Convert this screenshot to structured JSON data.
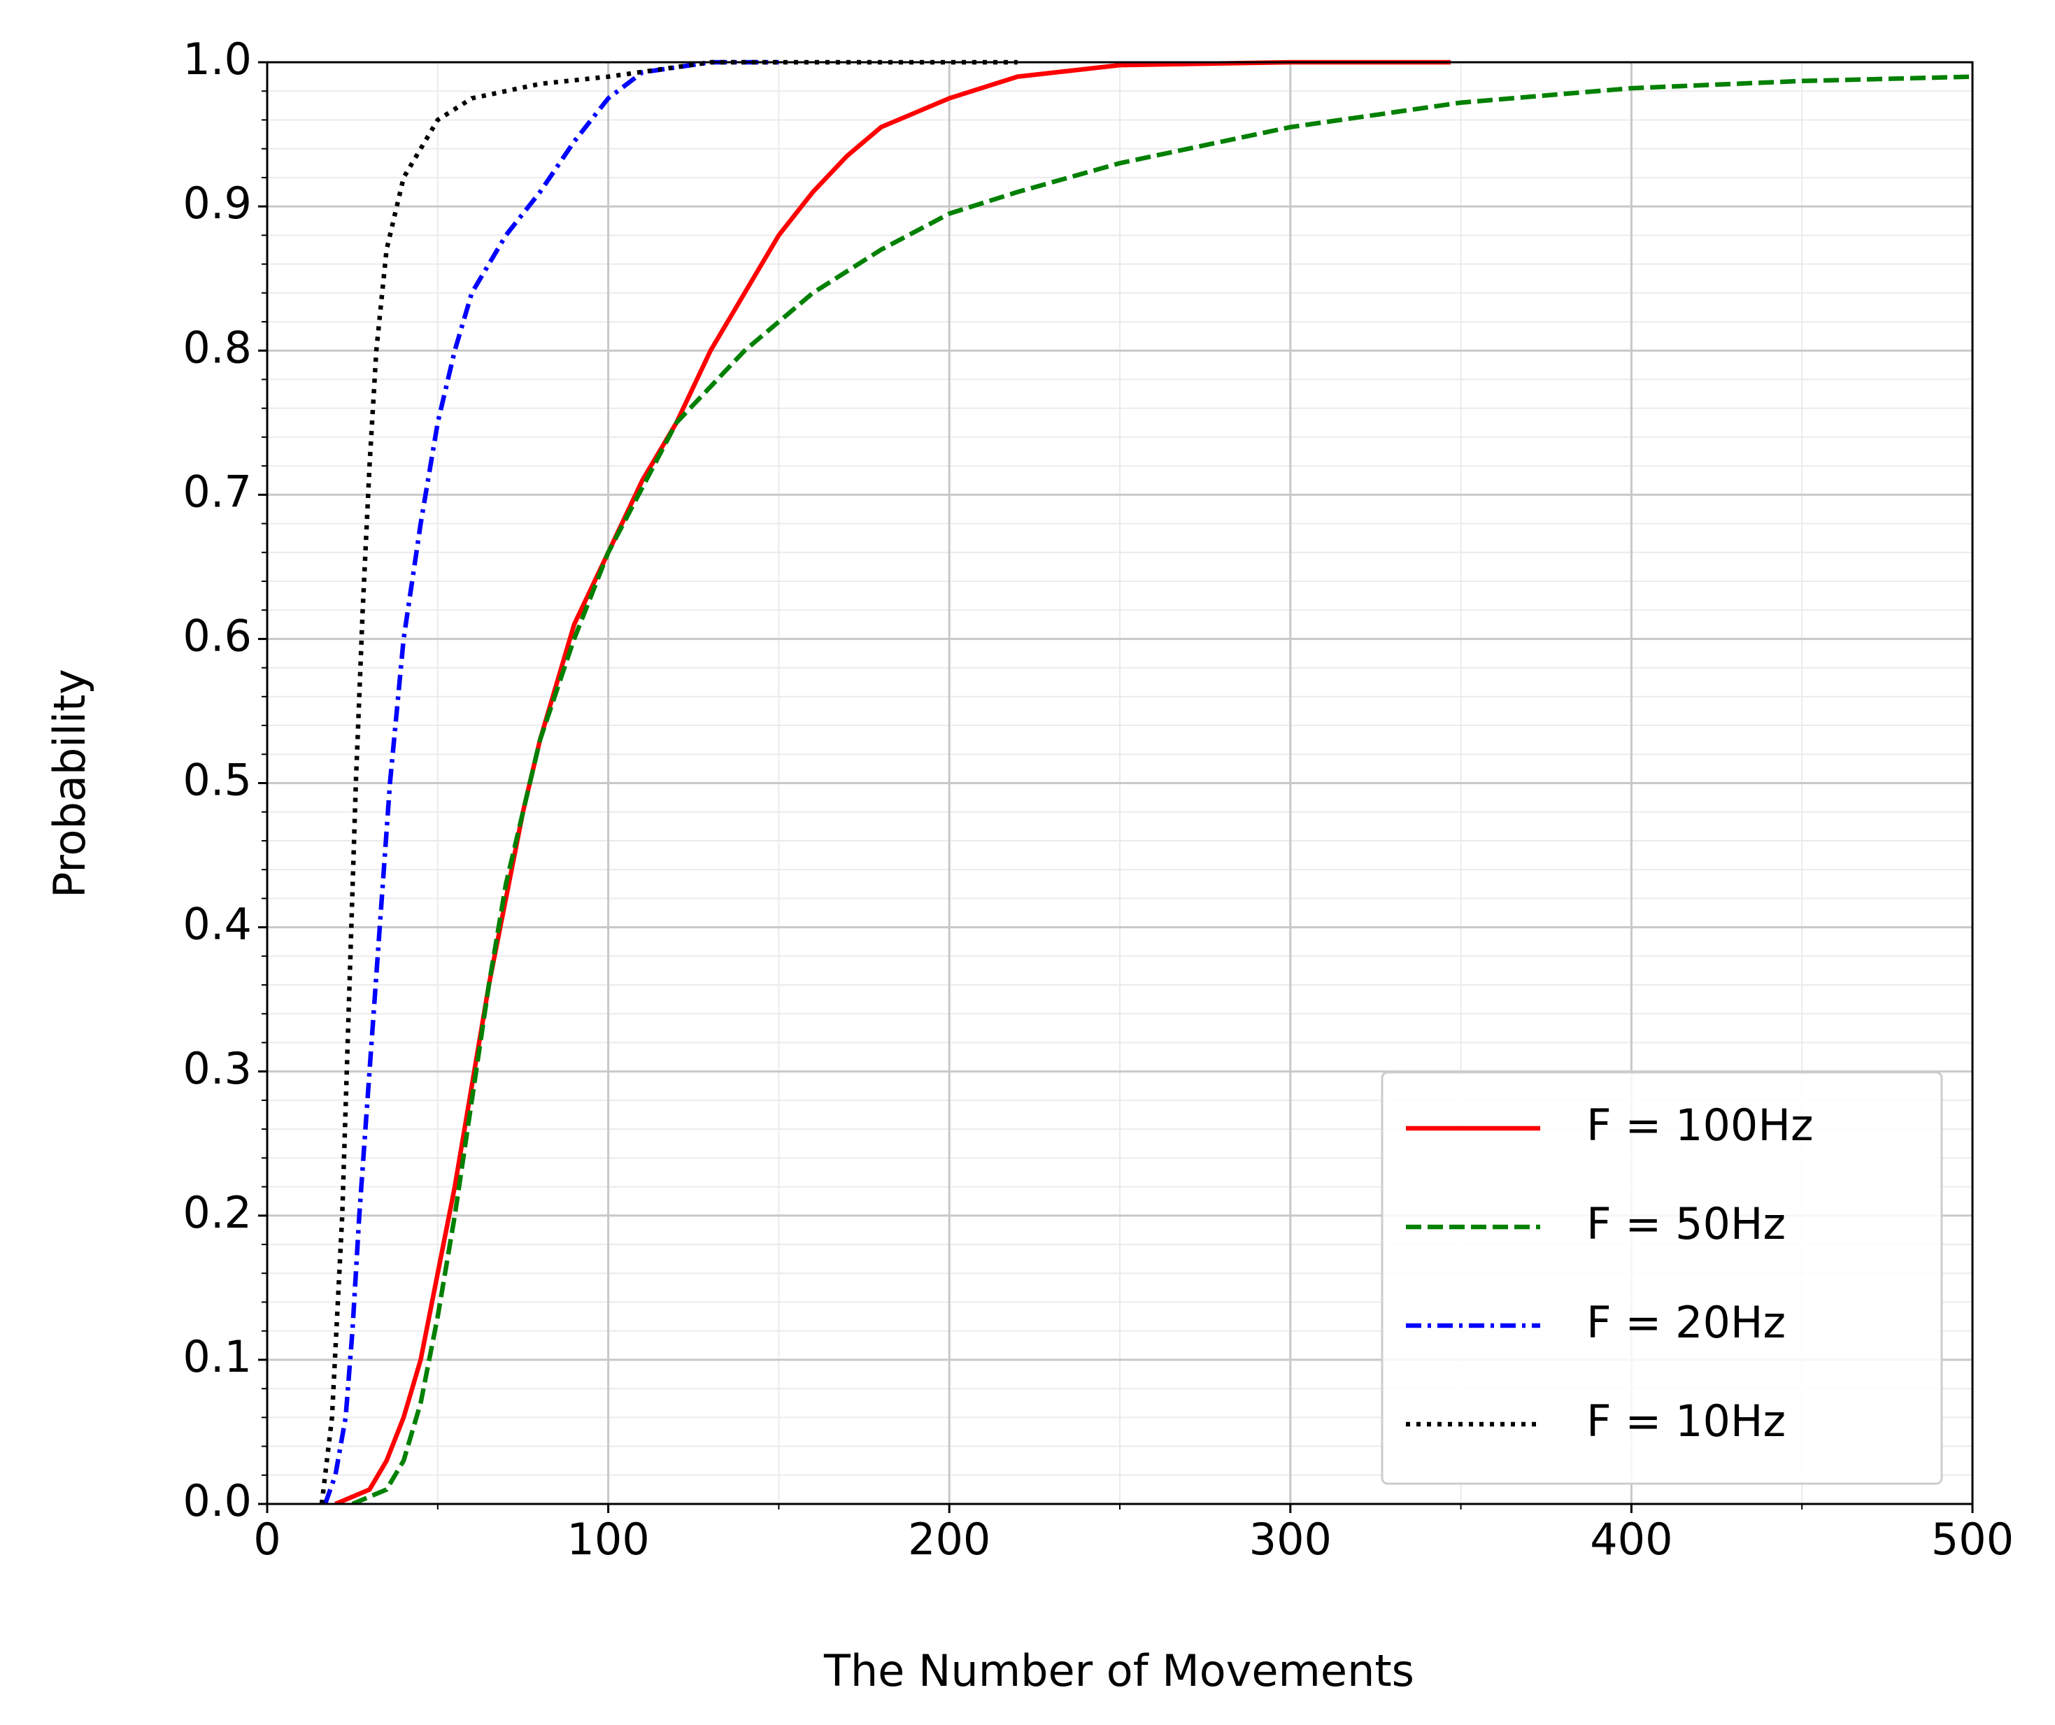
{
  "chart_data": {
    "type": "line",
    "xlabel": "The Number of Movements",
    "ylabel": "Probability",
    "xlim": [
      0,
      500
    ],
    "ylim": [
      0,
      1
    ],
    "xticks": [
      0,
      100,
      200,
      300,
      400,
      500
    ],
    "yticks": [
      {
        "value": 0,
        "label": "0.0"
      },
      0.1,
      0.2,
      0.3,
      0.4,
      0.5,
      0.6,
      0.7,
      0.8,
      0.9,
      {
        "value": 1,
        "label": "1.0"
      }
    ],
    "xminorticks": [
      50,
      150,
      250,
      350,
      450
    ],
    "yminorticks": [
      0.02,
      0.04,
      0.06,
      0.08,
      0.12,
      0.14,
      0.16,
      0.18,
      0.22,
      0.24,
      0.26,
      0.28,
      0.32,
      0.34,
      0.36,
      0.38,
      0.42,
      0.44,
      0.46,
      0.48,
      0.52,
      0.54,
      0.56,
      0.58,
      0.62,
      0.64,
      0.66,
      0.68,
      0.72,
      0.74,
      0.76,
      0.78,
      0.82,
      0.84,
      0.86,
      0.88,
      0.92,
      0.94,
      0.96,
      0.98
    ],
    "grid": true,
    "legend": "lower right",
    "series": [
      {
        "name": "F = 100Hz",
        "color": "#ff0000",
        "linestyle": "solid",
        "x": [
          20,
          30,
          35,
          40,
          45,
          50,
          55,
          60,
          65,
          70,
          75,
          80,
          85,
          90,
          100,
          110,
          120,
          130,
          140,
          150,
          160,
          170,
          180,
          200,
          220,
          250,
          300,
          347
        ],
        "values": [
          0,
          0.01,
          0.03,
          0.06,
          0.1,
          0.16,
          0.22,
          0.29,
          0.36,
          0.42,
          0.48,
          0.53,
          0.57,
          0.61,
          0.66,
          0.71,
          0.75,
          0.8,
          0.84,
          0.88,
          0.91,
          0.935,
          0.955,
          0.975,
          0.99,
          0.998,
          1,
          1
        ]
      },
      {
        "name": "F = 50Hz",
        "color": "#008000",
        "linestyle": "dashed",
        "x": [
          25,
          35,
          40,
          45,
          50,
          55,
          60,
          65,
          70,
          80,
          90,
          100,
          120,
          140,
          160,
          180,
          200,
          220,
          250,
          300,
          350,
          400,
          450,
          500
        ],
        "values": [
          0,
          0.01,
          0.03,
          0.07,
          0.13,
          0.2,
          0.28,
          0.36,
          0.43,
          0.53,
          0.6,
          0.66,
          0.75,
          0.8,
          0.84,
          0.87,
          0.895,
          0.91,
          0.93,
          0.955,
          0.972,
          0.982,
          0.987,
          0.99
        ]
      },
      {
        "name": "F = 20Hz",
        "color": "#0000ff",
        "linestyle": "dashdot",
        "x": [
          17,
          20,
          23,
          25,
          27,
          30,
          33,
          36,
          40,
          45,
          50,
          55,
          60,
          70,
          80,
          90,
          100,
          110,
          130,
          150
        ],
        "values": [
          0,
          0.02,
          0.06,
          0.12,
          0.2,
          0.3,
          0.4,
          0.5,
          0.6,
          0.68,
          0.75,
          0.8,
          0.84,
          0.88,
          0.91,
          0.945,
          0.975,
          0.993,
          1,
          1
        ]
      },
      {
        "name": "F = 10Hz",
        "color": "#000000",
        "linestyle": "dotted",
        "x": [
          16,
          19,
          22,
          24,
          26,
          28,
          30,
          32,
          35,
          40,
          50,
          60,
          80,
          100,
          130,
          220
        ],
        "values": [
          0,
          0.06,
          0.2,
          0.35,
          0.5,
          0.62,
          0.72,
          0.8,
          0.87,
          0.92,
          0.96,
          0.975,
          0.985,
          0.99,
          1,
          1
        ]
      }
    ]
  }
}
